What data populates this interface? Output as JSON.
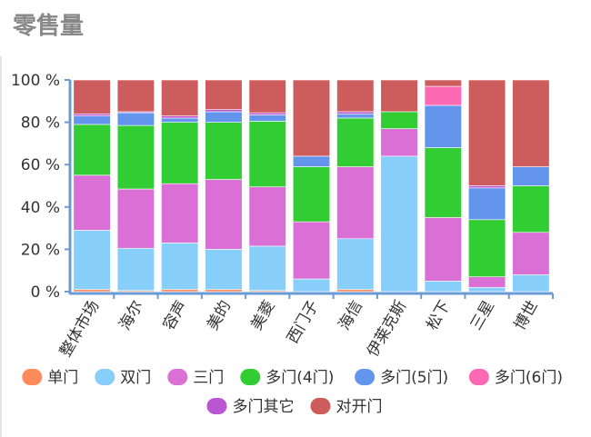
{
  "title": "零售量",
  "chart_data": {
    "type": "bar",
    "stacked": true,
    "title": "零售量",
    "ylim": [
      0,
      100
    ],
    "yticks": [
      "0 %",
      "20 %",
      "40 %",
      "60 %",
      "80 %",
      "100 %"
    ],
    "categories": [
      "整体市场",
      "海尔",
      "容声",
      "美的",
      "美菱",
      "西门子",
      "海信",
      "伊莱克斯",
      "松下",
      "三星",
      "博世"
    ],
    "series": [
      {
        "name": "单门",
        "color": "#ff8a5a",
        "values": [
          1,
          0.5,
          1,
          1,
          0.5,
          0,
          1,
          0,
          0,
          0,
          0
        ]
      },
      {
        "name": "双门",
        "color": "#87cefa",
        "values": [
          28,
          20,
          22,
          19,
          21,
          6,
          24,
          64,
          5,
          2,
          8
        ]
      },
      {
        "name": "三门",
        "color": "#da70d6",
        "values": [
          26,
          28,
          28,
          33,
          28,
          27,
          34,
          13,
          30,
          5,
          20
        ]
      },
      {
        "name": "多门(4门)",
        "color": "#32cd32",
        "values": [
          24,
          30,
          29,
          27,
          31,
          26,
          23,
          8,
          33,
          27,
          22
        ]
      },
      {
        "name": "多门(5门)",
        "color": "#6495ed",
        "values": [
          4,
          6,
          2,
          5,
          3,
          5,
          2,
          0,
          20,
          15,
          9
        ]
      },
      {
        "name": "多门(6门)",
        "color": "#ff69b4",
        "values": [
          0,
          0,
          0,
          0,
          0,
          0,
          0,
          0,
          9,
          0,
          0
        ]
      },
      {
        "name": "多门其它",
        "color": "#ba55d3",
        "values": [
          1,
          0.5,
          1,
          1,
          1,
          0,
          1,
          0,
          0,
          1,
          0
        ]
      },
      {
        "name": "对开门",
        "color": "#cd5c5c",
        "values": [
          16,
          15,
          17,
          14,
          15.5,
          36,
          15,
          15,
          3,
          50,
          41
        ]
      }
    ],
    "legend_position": "bottom",
    "grid": false
  }
}
